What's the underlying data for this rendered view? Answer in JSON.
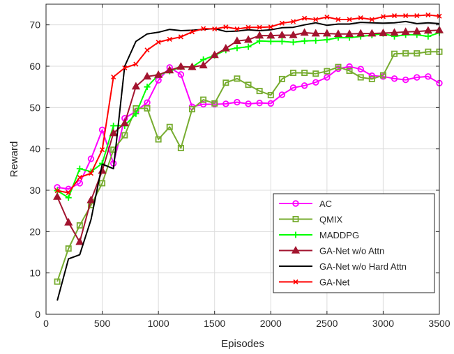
{
  "chart_data": {
    "type": "line",
    "title": "",
    "xlabel": "Episodes",
    "ylabel": "Reward",
    "xlim": [
      0,
      3500
    ],
    "ylim": [
      0,
      75
    ],
    "xticks": [
      "0",
      "500",
      "1000",
      "1500",
      "2000",
      "2500",
      "3000",
      "3500"
    ],
    "yticks": [
      "0",
      "10",
      "20",
      "30",
      "40",
      "50",
      "60",
      "70"
    ],
    "grid": true,
    "legend_position": "bottom-right",
    "x": [
      100,
      200,
      300,
      400,
      500,
      600,
      700,
      800,
      900,
      1000,
      1100,
      1200,
      1300,
      1400,
      1500,
      1600,
      1700,
      1800,
      1900,
      2000,
      2100,
      2200,
      2300,
      2400,
      2500,
      2600,
      2700,
      2800,
      2900,
      3000,
      3100,
      3200,
      3300,
      3400,
      3500
    ],
    "series": [
      {
        "name": "AC",
        "color": "#ff00ff",
        "marker": "circle",
        "values": [
          30.7,
          30.3,
          31.7,
          37.6,
          44.6,
          36.5,
          47.4,
          49.1,
          51.2,
          56.6,
          59.7,
          58.0,
          50.2,
          50.8,
          50.8,
          50.9,
          51.3,
          50.9,
          51.1,
          51.0,
          53.1,
          54.8,
          55.3,
          56.1,
          57.3,
          59.4,
          59.9,
          59.3,
          57.7,
          57.5,
          57.0,
          56.7,
          57.3,
          57.5,
          55.9
        ]
      },
      {
        "name": "QMIX",
        "color": "#77ac30",
        "marker": "square",
        "values": [
          7.9,
          15.9,
          21.5,
          26.4,
          31.7,
          39.8,
          43.3,
          49.8,
          49.8,
          42.3,
          45.3,
          40.2,
          49.6,
          51.9,
          51.0,
          56.0,
          57.0,
          55.5,
          54.0,
          53.0,
          56.9,
          58.4,
          58.4,
          58.2,
          58.8,
          59.8,
          58.9,
          57.3,
          56.9,
          57.8,
          63.0,
          63.1,
          63.1,
          63.5,
          63.5
        ]
      },
      {
        "name": "MADDPG",
        "color": "#00ff00",
        "marker": "plus",
        "values": [
          29.9,
          28.2,
          35.2,
          34.5,
          36.5,
          45.6,
          45.6,
          48.5,
          55.0,
          57.9,
          58.8,
          59.8,
          59.8,
          61.6,
          62.6,
          63.9,
          64.4,
          64.7,
          66.1,
          66.0,
          66.0,
          65.8,
          66.1,
          66.2,
          66.4,
          66.9,
          66.9,
          67.2,
          67.5,
          67.9,
          67.2,
          67.6,
          67.6,
          67.2,
          68.1
        ]
      },
      {
        "name": "GA-Net w/o Attn",
        "color": "#a2142f",
        "marker": "triangle",
        "values": [
          28.4,
          22.2,
          17.5,
          27.6,
          34.7,
          43.8,
          46.2,
          55.1,
          57.5,
          57.9,
          59.0,
          59.9,
          59.8,
          60.2,
          62.7,
          64.3,
          66.1,
          66.4,
          67.4,
          67.4,
          67.5,
          67.5,
          68.1,
          67.9,
          67.9,
          67.8,
          67.8,
          67.9,
          67.9,
          68.0,
          68.1,
          68.3,
          68.4,
          68.6,
          68.7
        ]
      },
      {
        "name": "GA-Net w/o Hard Attn",
        "color": "#000000",
        "marker": "none",
        "values": [
          3.3,
          13.4,
          14.4,
          22.9,
          36.3,
          35.2,
          60.0,
          66.0,
          67.8,
          68.2,
          68.9,
          68.6,
          68.7,
          68.9,
          69.1,
          68.4,
          68.5,
          68.8,
          68.6,
          68.8,
          69.3,
          69.4,
          70.0,
          70.5,
          69.9,
          70.2,
          70.2,
          70.6,
          70.5,
          70.4,
          70.5,
          70.8,
          70.3,
          70.5,
          70.3
        ]
      },
      {
        "name": "GA-Net",
        "color": "#ff0000",
        "marker": "x",
        "values": [
          29.9,
          29.4,
          33.1,
          34.1,
          39.8,
          57.4,
          59.6,
          60.5,
          63.9,
          65.8,
          66.5,
          67.1,
          68.3,
          69.1,
          69.0,
          69.5,
          69.0,
          69.4,
          69.4,
          69.5,
          70.4,
          70.8,
          71.6,
          71.3,
          71.9,
          71.3,
          71.3,
          71.7,
          71.3,
          72.0,
          72.2,
          72.2,
          72.2,
          72.4,
          72.1
        ]
      }
    ]
  }
}
